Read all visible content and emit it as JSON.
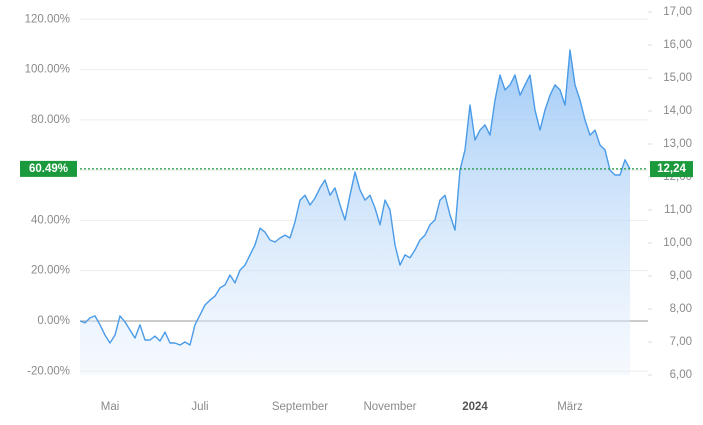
{
  "chart_data": {
    "type": "line",
    "categories": [
      null,
      null,
      null,
      null,
      null,
      null,
      "Mai",
      null,
      null,
      null,
      null,
      null,
      null,
      null,
      null,
      null,
      null,
      null,
      null,
      null,
      null,
      null,
      null,
      null,
      "Juli",
      null,
      null,
      null,
      null,
      null,
      null,
      null,
      null,
      null,
      null,
      null,
      null,
      null,
      null,
      null,
      null,
      null,
      null,
      null,
      "September",
      null,
      null,
      null,
      null,
      null,
      null,
      null,
      null,
      null,
      null,
      null,
      null,
      null,
      null,
      null,
      null,
      null,
      "November",
      null,
      null,
      null,
      null,
      null,
      null,
      null,
      null,
      null,
      null,
      null,
      null,
      null,
      null,
      null,
      null,
      "2024",
      null,
      null,
      null,
      null,
      null,
      null,
      null,
      null,
      null,
      null,
      null,
      null,
      null,
      null,
      null,
      null,
      null,
      null,
      "März",
      null,
      null,
      null,
      null,
      null,
      null,
      null,
      null,
      null,
      null,
      null,
      null
    ],
    "series": [
      {
        "axis": "y2",
        "color": "#4a9be8",
        "values": [
          7.64,
          7.58,
          7.73,
          7.79,
          7.52,
          7.21,
          6.97,
          7.21,
          7.79,
          7.61,
          7.36,
          7.12,
          7.52,
          7.06,
          7.06,
          7.18,
          7.03,
          7.3,
          6.97,
          6.97,
          6.91,
          7.0,
          6.91,
          7.52,
          7.82,
          8.12,
          8.27,
          8.39,
          8.64,
          8.73,
          9.03,
          8.79,
          9.18,
          9.33,
          9.64,
          9.94,
          10.45,
          10.33,
          10.09,
          10.03,
          10.15,
          10.24,
          10.15,
          10.64,
          11.3,
          11.45,
          11.15,
          11.36,
          11.67,
          11.91,
          11.45,
          11.67,
          11.15,
          10.7,
          11.45,
          12.15,
          11.61,
          11.3,
          11.45,
          11.06,
          10.55,
          11.3,
          11.0,
          9.94,
          9.33,
          9.64,
          9.55,
          9.79,
          10.09,
          10.24,
          10.55,
          10.7,
          11.3,
          11.45,
          10.85,
          10.39,
          12.21,
          12.82,
          14.18,
          13.12,
          13.42,
          13.58,
          13.27,
          14.33,
          15.09,
          14.64,
          14.79,
          15.09,
          14.48,
          14.79,
          15.09,
          14.03,
          13.42,
          14.03,
          14.48,
          14.79,
          14.64,
          14.18,
          15.85,
          14.79,
          14.33,
          13.73,
          13.27,
          13.42,
          12.97,
          12.82,
          12.21,
          12.06,
          12.06,
          12.52,
          12.24
        ]
      }
    ],
    "ylim": [
      -21.5,
      122.9
    ],
    "yticks": [
      {
        "value": -20,
        "label": "-20.00%"
      },
      {
        "value": 0,
        "label": "0.00%"
      },
      {
        "value": 20,
        "label": "20.00%"
      },
      {
        "value": 40,
        "label": "40.00%"
      },
      {
        "value": 60,
        "label": "60.00%"
      },
      {
        "value": 80,
        "label": "80.00%"
      },
      {
        "value": 100,
        "label": "100.00%"
      },
      {
        "value": 120,
        "label": "120.00%"
      }
    ],
    "y2lim": [
      6,
      17
    ],
    "y2ticks": [
      {
        "value": 6,
        "label": "6,00"
      },
      {
        "value": 7,
        "label": "7,00"
      },
      {
        "value": 8,
        "label": "8,00"
      },
      {
        "value": 9,
        "label": "9,00"
      },
      {
        "value": 10,
        "label": "10,00"
      },
      {
        "value": 11,
        "label": "11,00"
      },
      {
        "value": 12,
        "label": "12,00"
      },
      {
        "value": 13,
        "label": "13,00"
      },
      {
        "value": 14,
        "label": "14,00"
      },
      {
        "value": 15,
        "label": "15,00"
      },
      {
        "value": 16,
        "label": "16,00"
      },
      {
        "value": 17,
        "label": "17,00"
      }
    ],
    "grid": true,
    "marker": {
      "color": "#1a9a3c",
      "left": {
        "value": 60.49,
        "label": "60.49%"
      },
      "right": {
        "value": 12.24,
        "label": "12,24"
      }
    }
  }
}
